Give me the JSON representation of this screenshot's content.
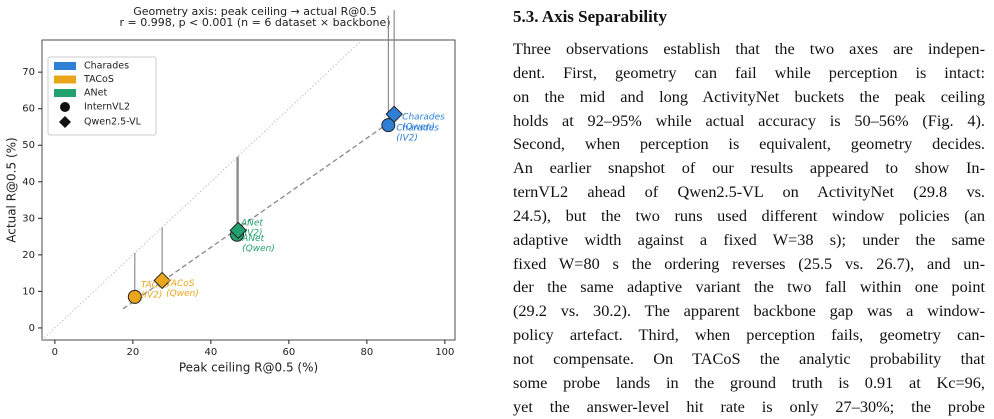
{
  "chart_data": {
    "type": "scatter",
    "title": [
      "Geometry axis:  peak ceiling → actual R@0.5",
      "r = 0.998,  p < 0.001  (n = 6 dataset × backbone)"
    ],
    "x_label": "Peak ceiling  R@0.5 (%)",
    "y_label": "Actual  R@0.5 (%)",
    "xlim": [
      -3.3,
      102.6
    ],
    "ylim": [
      -3.3,
      78.8
    ],
    "xticks": [
      0,
      20,
      40,
      60,
      80,
      100
    ],
    "yticks": [
      0,
      10,
      20,
      30,
      40,
      50,
      60,
      70
    ],
    "series": [
      {
        "name": "Charades",
        "color": "#2f7fd6",
        "x": [
          85.5,
          87
        ],
        "values": [
          55.5,
          58.5
        ],
        "point_labels": [
          [
            "Charades",
            "(IV2)"
          ],
          [
            "Charades",
            "(Qwen)"
          ]
        ]
      },
      {
        "name": "TACoS",
        "color": "#e9a51c",
        "x": [
          20.5,
          27.5
        ],
        "values": [
          8.5,
          13
        ],
        "point_labels": [
          [
            "TACoS",
            "(IV2)"
          ],
          [
            "TACoS",
            "(Qwen)"
          ]
        ]
      },
      {
        "name": "ANet",
        "color": "#22a06e",
        "x": [
          46.7,
          47
        ],
        "values": [
          25.5,
          26.7
        ],
        "point_labels": [
          [
            "ANet",
            "(IV2)"
          ],
          [
            "ANet",
            "(Qwen)"
          ]
        ]
      }
    ],
    "markers": [
      {
        "name": "InternVL2",
        "shape": "circle"
      },
      {
        "name": "Qwen2.5-VL",
        "shape": "diamond"
      }
    ],
    "legend": "upper left"
  },
  "paper": {
    "heading": "5.3. Axis Separability",
    "lines": [
      "Three observations establish that the two axes are indepen-",
      "dent. First, geometry can fail while perception is intact:",
      "on the mid and long ActivityNet buckets the peak ceiling",
      "holds at 92–95% while actual accuracy is 50–56% (Fig. 4).",
      "Second, when perception is equivalent, geometry decides.",
      "An earlier snapshot of our results appeared to show In-",
      "ternVL2 ahead of Qwen2.5-VL on ActivityNet (29.8 vs.",
      "24.5), but the two runs used different window policies (an",
      "adaptive width against a fixed W=38 s); under the same",
      "fixed W=80 s the ordering reverses (25.5 vs. 26.7), and un-",
      "der the same adaptive variant the two fall within one point",
      "(29.2 vs. 30.2). The apparent backbone gap was a window-",
      "policy artefact. Third, when perception fails, geometry can-",
      "not compensate. On TACoS the analytic probability that",
      "some probe lands in the ground truth is 0.91 at Kc=96,",
      "yet the answer-level hit rate is only 27–30%; the probe"
    ]
  }
}
